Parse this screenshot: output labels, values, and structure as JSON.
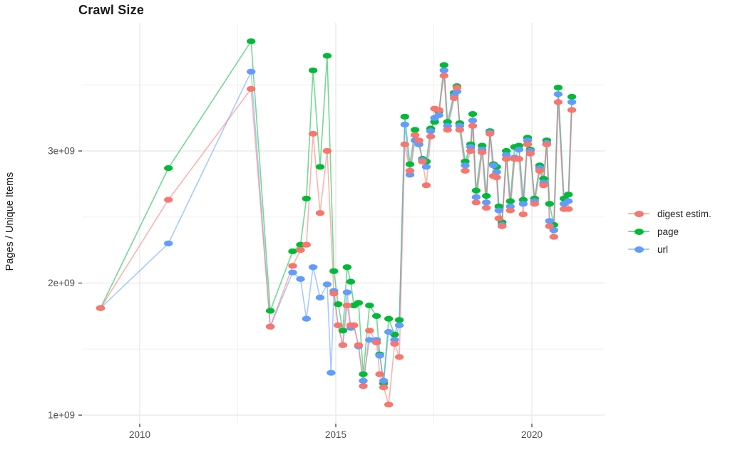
{
  "chart_data": {
    "type": "line",
    "title": "Crawl Size",
    "ylabel": "Pages / Unique Items",
    "xlabel": "",
    "values_unit": "billions (1e9) of pages / unique items",
    "grid": true,
    "legend_position": "right",
    "xlim": [
      2008.6,
      2021.85
    ],
    "ylim_billions": [
      0.93,
      3.99
    ],
    "x_major_ticks": [
      {
        "value": 2010,
        "label": "2010"
      },
      {
        "value": 2015,
        "label": "2015"
      },
      {
        "value": 2020,
        "label": "2020"
      }
    ],
    "x_minor_gridlines": [
      2012.5,
      2017.5
    ],
    "y_major_ticks": [
      {
        "value": 1,
        "label": "1e+09"
      },
      {
        "value": 2,
        "label": "2e+09"
      },
      {
        "value": 3,
        "label": "3e+09"
      }
    ],
    "y_minor_gridlines": [
      1.5,
      2.5,
      3.5
    ],
    "colors": {
      "digest": "#F8766D",
      "page": "#00BA38",
      "url": "#619CFF",
      "grid_major": "#E7E7E7",
      "grid_minor": "#F0F0F0",
      "tick": "#333333",
      "tick_label": "#4d4d4d"
    },
    "series": [
      {
        "name": "digest estim.",
        "color": "#F8766D",
        "points": [
          [
            2009.0,
            1.81
          ],
          [
            2010.73,
            2.63
          ],
          [
            2012.84,
            3.47
          ],
          [
            2013.33,
            1.67
          ],
          [
            2013.9,
            2.13
          ],
          [
            2014.1,
            2.25
          ],
          [
            2014.25,
            2.29
          ],
          [
            2014.42,
            3.13
          ],
          [
            2014.6,
            2.53
          ],
          [
            2014.78,
            3.0
          ],
          [
            2014.95,
            1.92
          ],
          [
            2015.06,
            1.68
          ],
          [
            2015.18,
            1.53
          ],
          [
            2015.29,
            1.83
          ],
          [
            2015.38,
            1.68
          ],
          [
            2015.46,
            1.68
          ],
          [
            2015.58,
            1.53
          ],
          [
            2015.7,
            1.22
          ],
          [
            2015.86,
            1.64
          ],
          [
            2016.04,
            1.55
          ],
          [
            2016.12,
            1.31
          ],
          [
            2016.22,
            1.21
          ],
          [
            2016.35,
            1.08
          ],
          [
            2016.5,
            1.54
          ],
          [
            2016.62,
            1.44
          ],
          [
            2016.76,
            3.05
          ],
          [
            2016.89,
            2.85
          ],
          [
            2017.02,
            3.12
          ],
          [
            2017.12,
            3.08
          ],
          [
            2017.21,
            2.92
          ],
          [
            2017.31,
            2.74
          ],
          [
            2017.42,
            3.11
          ],
          [
            2017.52,
            3.32
          ],
          [
            2017.63,
            3.31
          ],
          [
            2017.76,
            3.57
          ],
          [
            2017.85,
            3.16
          ],
          [
            2018.02,
            3.4
          ],
          [
            2018.09,
            3.48
          ],
          [
            2018.16,
            3.16
          ],
          [
            2018.3,
            2.85
          ],
          [
            2018.44,
            3.0
          ],
          [
            2018.49,
            3.19
          ],
          [
            2018.58,
            2.61
          ],
          [
            2018.73,
            2.99
          ],
          [
            2018.84,
            2.57
          ],
          [
            2018.93,
            3.13
          ],
          [
            2019.02,
            2.81
          ],
          [
            2019.1,
            2.8
          ],
          [
            2019.16,
            2.49
          ],
          [
            2019.24,
            2.43
          ],
          [
            2019.35,
            2.94
          ],
          [
            2019.45,
            2.55
          ],
          [
            2019.56,
            2.94
          ],
          [
            2019.67,
            2.94
          ],
          [
            2019.78,
            2.52
          ],
          [
            2019.89,
            3.05
          ],
          [
            2019.96,
            2.98
          ],
          [
            2020.07,
            2.6
          ],
          [
            2020.2,
            2.85
          ],
          [
            2020.3,
            2.74
          ],
          [
            2020.38,
            3.05
          ],
          [
            2020.45,
            2.43
          ],
          [
            2020.56,
            2.35
          ],
          [
            2020.67,
            3.37
          ],
          [
            2020.82,
            2.56
          ],
          [
            2020.93,
            2.56
          ],
          [
            2021.02,
            3.31
          ]
        ]
      },
      {
        "name": "page",
        "color": "#00BA38",
        "points": [
          [
            2009.0,
            1.81
          ],
          [
            2010.73,
            2.87
          ],
          [
            2012.84,
            3.83
          ],
          [
            2013.33,
            1.79
          ],
          [
            2013.9,
            2.24
          ],
          [
            2014.1,
            2.29
          ],
          [
            2014.25,
            2.64
          ],
          [
            2014.42,
            3.61
          ],
          [
            2014.6,
            2.88
          ],
          [
            2014.78,
            3.72
          ],
          [
            2014.95,
            2.09
          ],
          [
            2015.06,
            1.84
          ],
          [
            2015.18,
            1.64
          ],
          [
            2015.29,
            2.12
          ],
          [
            2015.38,
            2.01
          ],
          [
            2015.46,
            1.83
          ],
          [
            2015.58,
            1.85
          ],
          [
            2015.7,
            1.31
          ],
          [
            2015.86,
            1.83
          ],
          [
            2016.04,
            1.75
          ],
          [
            2016.12,
            1.46
          ],
          [
            2016.22,
            1.24
          ],
          [
            2016.35,
            1.73
          ],
          [
            2016.5,
            1.61
          ],
          [
            2016.62,
            1.72
          ],
          [
            2016.76,
            3.26
          ],
          [
            2016.89,
            2.9
          ],
          [
            2017.02,
            3.16
          ],
          [
            2017.12,
            3.05
          ],
          [
            2017.21,
            2.94
          ],
          [
            2017.31,
            2.92
          ],
          [
            2017.42,
            3.17
          ],
          [
            2017.52,
            3.22
          ],
          [
            2017.63,
            3.3
          ],
          [
            2017.76,
            3.65
          ],
          [
            2017.85,
            3.22
          ],
          [
            2018.02,
            3.44
          ],
          [
            2018.09,
            3.49
          ],
          [
            2018.16,
            3.21
          ],
          [
            2018.3,
            2.92
          ],
          [
            2018.44,
            3.05
          ],
          [
            2018.49,
            3.28
          ],
          [
            2018.58,
            2.7
          ],
          [
            2018.73,
            3.04
          ],
          [
            2018.84,
            2.66
          ],
          [
            2018.93,
            3.15
          ],
          [
            2019.02,
            2.9
          ],
          [
            2019.1,
            2.88
          ],
          [
            2019.16,
            2.58
          ],
          [
            2019.24,
            2.46
          ],
          [
            2019.35,
            3.0
          ],
          [
            2019.45,
            2.62
          ],
          [
            2019.56,
            3.03
          ],
          [
            2019.67,
            3.04
          ],
          [
            2019.78,
            2.63
          ],
          [
            2019.89,
            3.1
          ],
          [
            2019.96,
            3.01
          ],
          [
            2020.07,
            2.64
          ],
          [
            2020.2,
            2.89
          ],
          [
            2020.3,
            2.79
          ],
          [
            2020.38,
            3.08
          ],
          [
            2020.45,
            2.6
          ],
          [
            2020.56,
            2.44
          ],
          [
            2020.67,
            3.48
          ],
          [
            2020.82,
            2.64
          ],
          [
            2020.93,
            2.67
          ],
          [
            2021.02,
            3.41
          ]
        ]
      },
      {
        "name": "url",
        "color": "#619CFF",
        "points": [
          [
            2009.0,
            1.81
          ],
          [
            2010.73,
            2.3
          ],
          [
            2012.84,
            3.6
          ],
          [
            2013.33,
            1.67
          ],
          [
            2013.9,
            2.08
          ],
          [
            2014.1,
            2.03
          ],
          [
            2014.25,
            1.73
          ],
          [
            2014.42,
            2.12
          ],
          [
            2014.6,
            1.89
          ],
          [
            2014.78,
            1.99
          ],
          [
            2014.88,
            1.32
          ],
          [
            2014.95,
            1.94
          ],
          [
            2015.06,
            1.68
          ],
          [
            2015.18,
            1.53
          ],
          [
            2015.29,
            1.93
          ],
          [
            2015.38,
            1.66
          ],
          [
            2015.46,
            1.68
          ],
          [
            2015.58,
            1.52
          ],
          [
            2015.7,
            1.26
          ],
          [
            2015.86,
            1.57
          ],
          [
            2016.04,
            1.57
          ],
          [
            2016.12,
            1.45
          ],
          [
            2016.22,
            1.26
          ],
          [
            2016.35,
            1.63
          ],
          [
            2016.5,
            1.57
          ],
          [
            2016.62,
            1.68
          ],
          [
            2016.76,
            3.2
          ],
          [
            2016.89,
            2.82
          ],
          [
            2017.02,
            3.08
          ],
          [
            2017.12,
            3.05
          ],
          [
            2017.21,
            2.93
          ],
          [
            2017.31,
            2.88
          ],
          [
            2017.42,
            3.15
          ],
          [
            2017.52,
            3.25
          ],
          [
            2017.63,
            3.27
          ],
          [
            2017.76,
            3.61
          ],
          [
            2017.85,
            3.19
          ],
          [
            2018.02,
            3.42
          ],
          [
            2018.09,
            3.45
          ],
          [
            2018.16,
            3.19
          ],
          [
            2018.3,
            2.89
          ],
          [
            2018.44,
            3.03
          ],
          [
            2018.49,
            3.23
          ],
          [
            2018.58,
            2.65
          ],
          [
            2018.73,
            3.01
          ],
          [
            2018.84,
            2.61
          ],
          [
            2018.93,
            3.14
          ],
          [
            2019.02,
            2.89
          ],
          [
            2019.1,
            2.84
          ],
          [
            2019.16,
            2.55
          ],
          [
            2019.24,
            2.44
          ],
          [
            2019.35,
            2.97
          ],
          [
            2019.45,
            2.58
          ],
          [
            2019.56,
            2.95
          ],
          [
            2019.67,
            3.01
          ],
          [
            2019.78,
            2.6
          ],
          [
            2019.89,
            3.08
          ],
          [
            2019.96,
            3.0
          ],
          [
            2020.07,
            2.62
          ],
          [
            2020.2,
            2.87
          ],
          [
            2020.3,
            2.76
          ],
          [
            2020.38,
            3.06
          ],
          [
            2020.45,
            2.47
          ],
          [
            2020.56,
            2.4
          ],
          [
            2020.67,
            3.43
          ],
          [
            2020.82,
            2.6
          ],
          [
            2020.93,
            2.62
          ],
          [
            2021.02,
            3.37
          ]
        ]
      }
    ]
  }
}
